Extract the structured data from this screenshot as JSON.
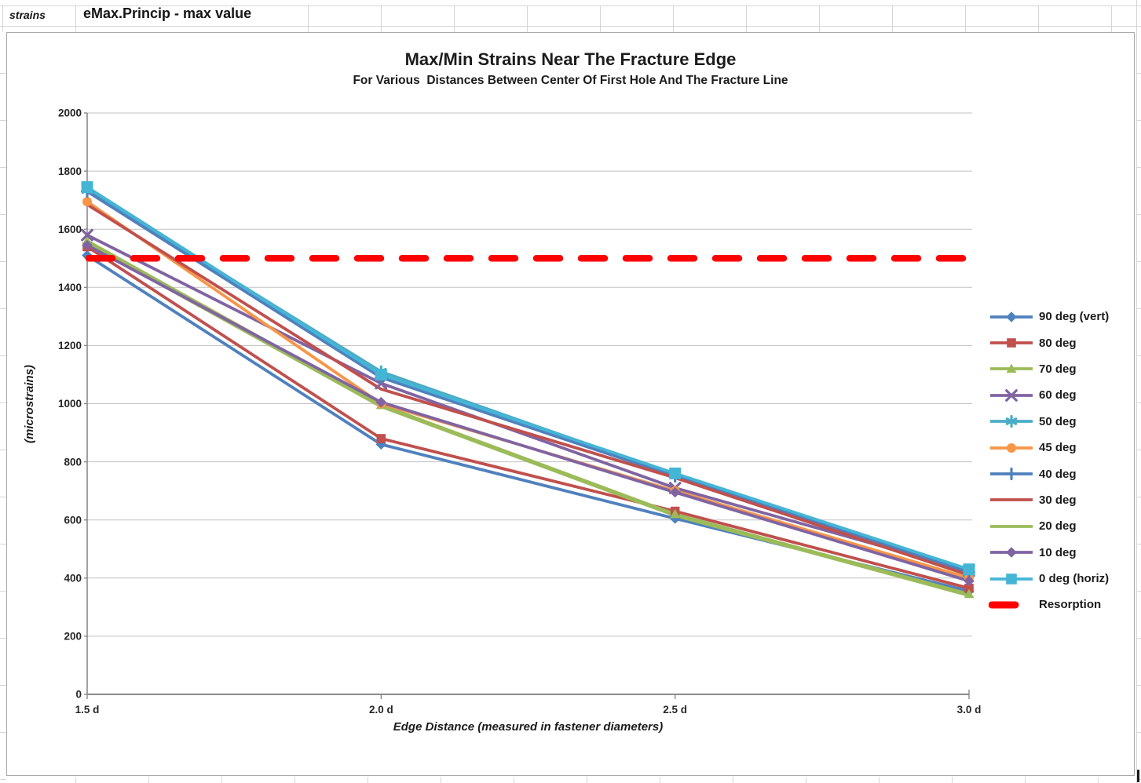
{
  "spreadsheet": {
    "name_cell": "strains",
    "formula_cell": "eMax.Princip - max value"
  },
  "chart_data": {
    "type": "line",
    "title": "Max/Min Strains Near The Fracture Edge",
    "subtitle": "For Various  Distances Between Center Of First Hole And The Fracture Line",
    "xlabel": "Edge Distance (measured in fastener diameters)",
    "ylabel": "(microstrains)",
    "x_labels": [
      "1.5 d",
      "2.0 d",
      "2.5 d",
      "3.0 d"
    ],
    "x_values": [
      1.5,
      2.0,
      2.5,
      3.0
    ],
    "ylim": [
      0,
      2000
    ],
    "y_ticks": [
      0,
      200,
      400,
      600,
      800,
      1000,
      1200,
      1400,
      1600,
      1800,
      2000
    ],
    "grid": true,
    "legend_position": "right",
    "series": [
      {
        "name": "90 deg (vert)",
        "color": "#4F81BD",
        "marker": "diamond",
        "values": [
          1510,
          860,
          605,
          355
        ]
      },
      {
        "name": "80 deg",
        "color": "#C0504D",
        "marker": "square",
        "values": [
          1540,
          880,
          630,
          365
        ]
      },
      {
        "name": "70 deg",
        "color": "#9BBB59",
        "marker": "triangle",
        "values": [
          1560,
          995,
          620,
          345
        ]
      },
      {
        "name": "60 deg",
        "color": "#8064A2",
        "marker": "x",
        "values": [
          1580,
          1070,
          710,
          425
        ]
      },
      {
        "name": "50 deg",
        "color": "#4BACC6",
        "marker": "asterisk",
        "values": [
          1735,
          1110,
          755,
          415
        ]
      },
      {
        "name": "45 deg",
        "color": "#F79646",
        "marker": "circle",
        "values": [
          1695,
          1000,
          700,
          400
        ]
      },
      {
        "name": "40 deg",
        "color": "#4F81BD",
        "marker": "plus",
        "values": [
          1730,
          1090,
          750,
          420
        ]
      },
      {
        "name": "30 deg",
        "color": "#C0504D",
        "marker": "none",
        "values": [
          1685,
          1050,
          745,
          410
        ]
      },
      {
        "name": "20 deg",
        "color": "#9BBB59",
        "marker": "none",
        "values": [
          1550,
          990,
          615,
          340
        ]
      },
      {
        "name": "10 deg",
        "color": "#8064A2",
        "marker": "diamond",
        "values": [
          1545,
          1005,
          695,
          390
        ]
      },
      {
        "name": "0 deg (horiz)",
        "color": "#45B5D6",
        "marker": "square",
        "values": [
          1745,
          1100,
          760,
          430
        ]
      }
    ],
    "reference_line": {
      "name": "Resorption",
      "value": 1500,
      "color": "#FF0000",
      "style": "dashed"
    }
  }
}
